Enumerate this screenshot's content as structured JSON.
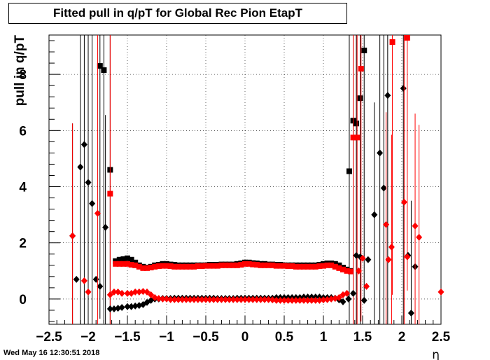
{
  "chart_data": {
    "type": "scatter",
    "title": "Fitted pull in q/pT for Global Rec Pion EtapT",
    "xlabel": "η",
    "ylabel": "pull in q/pT",
    "xlim": [
      -2.5,
      2.5
    ],
    "ylim": [
      -0.9,
      9.4
    ],
    "x_ticks": [
      -2.5,
      -2,
      -1.5,
      -1,
      -0.5,
      0,
      0.5,
      1,
      1.5,
      2,
      2.5
    ],
    "x_tick_labels": [
      "−2.5",
      "−2",
      "−1.5",
      "−1",
      "−0.5",
      "0",
      "0.5",
      "1",
      "1.5",
      "2",
      "2.5"
    ],
    "y_ticks": [
      0,
      2,
      4,
      6,
      8
    ],
    "y_tick_labels": [
      "0",
      "2",
      "4",
      "6",
      "8"
    ],
    "grid": true,
    "colors": {
      "black": "#000000",
      "red": "#ff0000"
    },
    "series": [
      {
        "marker": "square",
        "color": "#000000",
        "points": [
          [
            -1.85,
            8.3
          ],
          [
            -1.8,
            8.15
          ],
          [
            -1.72,
            4.6
          ],
          [
            -1.65,
            1.35
          ],
          [
            -1.6,
            1.4
          ],
          [
            -1.55,
            1.42
          ],
          [
            -1.5,
            1.45
          ],
          [
            -1.45,
            1.4
          ],
          [
            -1.4,
            1.3
          ],
          [
            -1.35,
            1.2
          ],
          [
            -1.3,
            1.15
          ],
          [
            -1.25,
            1.12
          ],
          [
            -1.2,
            1.15
          ],
          [
            -1.15,
            1.2
          ],
          [
            -1.1,
            1.22
          ],
          [
            -1.05,
            1.25
          ],
          [
            -1.0,
            1.25
          ],
          [
            -0.95,
            1.23
          ],
          [
            -0.9,
            1.22
          ],
          [
            -0.85,
            1.2
          ],
          [
            -0.8,
            1.2
          ],
          [
            -0.75,
            1.2
          ],
          [
            -0.7,
            1.2
          ],
          [
            -0.65,
            1.2
          ],
          [
            -0.6,
            1.2
          ],
          [
            -0.55,
            1.2
          ],
          [
            -0.5,
            1.2
          ],
          [
            -0.45,
            1.22
          ],
          [
            -0.4,
            1.22
          ],
          [
            -0.35,
            1.22
          ],
          [
            -0.3,
            1.23
          ],
          [
            -0.25,
            1.23
          ],
          [
            -0.2,
            1.23
          ],
          [
            -0.15,
            1.23
          ],
          [
            -0.1,
            1.25
          ],
          [
            -0.05,
            1.27
          ],
          [
            0.0,
            1.3
          ],
          [
            0.05,
            1.3
          ],
          [
            0.1,
            1.28
          ],
          [
            0.15,
            1.27
          ],
          [
            0.2,
            1.25
          ],
          [
            0.25,
            1.25
          ],
          [
            0.3,
            1.23
          ],
          [
            0.35,
            1.23
          ],
          [
            0.4,
            1.22
          ],
          [
            0.45,
            1.22
          ],
          [
            0.5,
            1.2
          ],
          [
            0.55,
            1.2
          ],
          [
            0.6,
            1.2
          ],
          [
            0.65,
            1.2
          ],
          [
            0.7,
            1.2
          ],
          [
            0.75,
            1.2
          ],
          [
            0.8,
            1.2
          ],
          [
            0.85,
            1.2
          ],
          [
            0.9,
            1.2
          ],
          [
            0.95,
            1.22
          ],
          [
            1.0,
            1.25
          ],
          [
            1.05,
            1.27
          ],
          [
            1.1,
            1.27
          ],
          [
            1.15,
            1.25
          ],
          [
            1.2,
            1.2
          ],
          [
            1.25,
            1.12
          ],
          [
            1.3,
            1.05
          ],
          [
            1.35,
            1.0
          ],
          [
            1.33,
            4.55
          ],
          [
            1.38,
            6.35
          ],
          [
            1.42,
            6.25
          ],
          [
            1.47,
            7.15
          ],
          [
            1.52,
            8.85
          ]
        ]
      },
      {
        "marker": "square",
        "color": "#ff0000",
        "points": [
          [
            -1.72,
            3.75
          ],
          [
            -1.65,
            1.25
          ],
          [
            -1.6,
            1.25
          ],
          [
            -1.55,
            1.25
          ],
          [
            -1.5,
            1.25
          ],
          [
            -1.45,
            1.22
          ],
          [
            -1.4,
            1.2
          ],
          [
            -1.35,
            1.15
          ],
          [
            -1.3,
            1.1
          ],
          [
            -1.25,
            1.1
          ],
          [
            -1.2,
            1.12
          ],
          [
            -1.15,
            1.15
          ],
          [
            -1.1,
            1.17
          ],
          [
            -1.05,
            1.18
          ],
          [
            -1.0,
            1.18
          ],
          [
            -0.95,
            1.17
          ],
          [
            -0.9,
            1.15
          ],
          [
            -0.85,
            1.15
          ],
          [
            -0.8,
            1.15
          ],
          [
            -0.75,
            1.15
          ],
          [
            -0.7,
            1.15
          ],
          [
            -0.65,
            1.15
          ],
          [
            -0.6,
            1.17
          ],
          [
            -0.55,
            1.17
          ],
          [
            -0.5,
            1.18
          ],
          [
            -0.45,
            1.18
          ],
          [
            -0.4,
            1.18
          ],
          [
            -0.35,
            1.18
          ],
          [
            -0.3,
            1.2
          ],
          [
            -0.25,
            1.2
          ],
          [
            -0.2,
            1.2
          ],
          [
            -0.15,
            1.2
          ],
          [
            -0.1,
            1.2
          ],
          [
            -0.05,
            1.22
          ],
          [
            0.0,
            1.25
          ],
          [
            0.05,
            1.25
          ],
          [
            0.1,
            1.23
          ],
          [
            0.15,
            1.22
          ],
          [
            0.2,
            1.2
          ],
          [
            0.25,
            1.2
          ],
          [
            0.3,
            1.2
          ],
          [
            0.35,
            1.2
          ],
          [
            0.4,
            1.18
          ],
          [
            0.45,
            1.18
          ],
          [
            0.5,
            1.18
          ],
          [
            0.55,
            1.17
          ],
          [
            0.6,
            1.17
          ],
          [
            0.65,
            1.15
          ],
          [
            0.7,
            1.15
          ],
          [
            0.75,
            1.15
          ],
          [
            0.8,
            1.15
          ],
          [
            0.85,
            1.15
          ],
          [
            0.9,
            1.15
          ],
          [
            0.95,
            1.17
          ],
          [
            1.0,
            1.18
          ],
          [
            1.05,
            1.2
          ],
          [
            1.1,
            1.2
          ],
          [
            1.15,
            1.15
          ],
          [
            1.2,
            1.1
          ],
          [
            1.25,
            1.05
          ],
          [
            1.3,
            1.0
          ],
          [
            1.35,
            0.98
          ],
          [
            1.38,
            5.75
          ],
          [
            1.43,
            5.75
          ],
          [
            1.48,
            8.2
          ],
          [
            1.88,
            9.15
          ],
          [
            2.07,
            9.3
          ]
        ]
      },
      {
        "marker": "diamond",
        "color": "#000000",
        "points": [
          [
            -2.2,
            2.25
          ],
          [
            -2.15,
            0.7
          ],
          [
            -2.1,
            4.7
          ],
          [
            -2.05,
            5.5
          ],
          [
            -2.0,
            4.15
          ],
          [
            -1.95,
            3.4
          ],
          [
            -1.9,
            0.7
          ],
          [
            -1.85,
            0.45
          ],
          [
            -1.78,
            2.55
          ],
          [
            -1.72,
            -0.35
          ],
          [
            -1.67,
            -0.35
          ],
          [
            -1.62,
            -0.33
          ],
          [
            -1.57,
            -0.3
          ],
          [
            -1.5,
            -0.27
          ],
          [
            -1.45,
            -0.27
          ],
          [
            -1.4,
            -0.25
          ],
          [
            -1.35,
            -0.23
          ],
          [
            -1.3,
            -0.2
          ],
          [
            -1.25,
            -0.12
          ],
          [
            -1.2,
            -0.05
          ],
          [
            -1.15,
            0.0
          ],
          [
            -1.1,
            0.0
          ],
          [
            -1.05,
            0.02
          ],
          [
            -1.0,
            0.02
          ],
          [
            -0.95,
            0.02
          ],
          [
            -0.9,
            0.03
          ],
          [
            -0.85,
            0.03
          ],
          [
            -0.8,
            0.03
          ],
          [
            -0.75,
            0.03
          ],
          [
            -0.7,
            0.03
          ],
          [
            -0.65,
            0.03
          ],
          [
            -0.6,
            0.03
          ],
          [
            -0.55,
            0.03
          ],
          [
            -0.5,
            0.03
          ],
          [
            -0.45,
            0.03
          ],
          [
            -0.4,
            0.03
          ],
          [
            -0.35,
            0.02
          ],
          [
            -0.3,
            0.02
          ],
          [
            -0.25,
            0.02
          ],
          [
            -0.2,
            0.02
          ],
          [
            -0.15,
            0.02
          ],
          [
            -0.1,
            0.03
          ],
          [
            -0.05,
            0.03
          ],
          [
            0.0,
            0.03
          ],
          [
            0.05,
            0.03
          ],
          [
            0.1,
            0.03
          ],
          [
            0.15,
            0.03
          ],
          [
            0.2,
            0.03
          ],
          [
            0.25,
            0.03
          ],
          [
            0.3,
            0.03
          ],
          [
            0.35,
            0.03
          ],
          [
            0.4,
            0.05
          ],
          [
            0.45,
            0.05
          ],
          [
            0.5,
            0.05
          ],
          [
            0.55,
            0.05
          ],
          [
            0.6,
            0.05
          ],
          [
            0.65,
            0.05
          ],
          [
            0.7,
            0.05
          ],
          [
            0.75,
            0.07
          ],
          [
            0.8,
            0.07
          ],
          [
            0.85,
            0.07
          ],
          [
            0.9,
            0.07
          ],
          [
            0.95,
            0.07
          ],
          [
            1.0,
            0.05
          ],
          [
            1.05,
            0.05
          ],
          [
            1.1,
            0.05
          ],
          [
            1.15,
            0.03
          ],
          [
            1.2,
            -0.03
          ],
          [
            1.25,
            -0.1
          ],
          [
            1.32,
            0.0
          ],
          [
            1.38,
            0.2
          ],
          [
            1.42,
            1.55
          ],
          [
            1.47,
            1.5
          ],
          [
            1.52,
            -0.05
          ],
          [
            1.57,
            1.4
          ],
          [
            1.65,
            3.0
          ],
          [
            1.72,
            5.2
          ],
          [
            1.77,
            3.95
          ],
          [
            1.82,
            7.25
          ],
          [
            2.02,
            7.5
          ],
          [
            2.08,
            1.55
          ],
          [
            2.12,
            -0.5
          ],
          [
            2.17,
            1.15
          ]
        ]
      },
      {
        "marker": "diamond",
        "color": "#ff0000",
        "points": [
          [
            -2.2,
            2.25
          ],
          [
            -2.05,
            0.65
          ],
          [
            -2.0,
            0.25
          ],
          [
            -1.88,
            3.05
          ],
          [
            -1.72,
            0.15
          ],
          [
            -1.67,
            0.25
          ],
          [
            -1.62,
            0.25
          ],
          [
            -1.57,
            0.2
          ],
          [
            -1.5,
            0.2
          ],
          [
            -1.45,
            0.2
          ],
          [
            -1.4,
            0.25
          ],
          [
            -1.35,
            0.25
          ],
          [
            -1.3,
            0.27
          ],
          [
            -1.25,
            0.25
          ],
          [
            -1.2,
            0.15
          ],
          [
            -1.15,
            0.05
          ],
          [
            -1.1,
            0.02
          ],
          [
            -1.05,
            0.0
          ],
          [
            -1.0,
            0.0
          ],
          [
            -0.95,
            -0.02
          ],
          [
            -0.9,
            -0.02
          ],
          [
            -0.85,
            -0.02
          ],
          [
            -0.8,
            -0.02
          ],
          [
            -0.75,
            -0.02
          ],
          [
            -0.7,
            -0.02
          ],
          [
            -0.65,
            -0.02
          ],
          [
            -0.6,
            -0.02
          ],
          [
            -0.55,
            -0.02
          ],
          [
            -0.5,
            -0.02
          ],
          [
            -0.45,
            -0.02
          ],
          [
            -0.4,
            -0.02
          ],
          [
            -0.35,
            -0.02
          ],
          [
            -0.3,
            -0.02
          ],
          [
            -0.25,
            -0.02
          ],
          [
            -0.2,
            -0.02
          ],
          [
            -0.15,
            -0.02
          ],
          [
            -0.1,
            -0.02
          ],
          [
            -0.05,
            -0.02
          ],
          [
            0.0,
            -0.02
          ],
          [
            0.05,
            -0.02
          ],
          [
            0.1,
            -0.02
          ],
          [
            0.15,
            -0.02
          ],
          [
            0.2,
            -0.02
          ],
          [
            0.25,
            -0.02
          ],
          [
            0.3,
            -0.02
          ],
          [
            0.35,
            -0.03
          ],
          [
            0.4,
            -0.05
          ],
          [
            0.45,
            -0.05
          ],
          [
            0.5,
            -0.05
          ],
          [
            0.55,
            -0.05
          ],
          [
            0.6,
            -0.05
          ],
          [
            0.65,
            -0.05
          ],
          [
            0.7,
            -0.05
          ],
          [
            0.75,
            -0.05
          ],
          [
            0.8,
            -0.05
          ],
          [
            0.85,
            -0.05
          ],
          [
            0.9,
            -0.05
          ],
          [
            0.95,
            -0.05
          ],
          [
            1.0,
            -0.03
          ],
          [
            1.05,
            -0.02
          ],
          [
            1.1,
            0.0
          ],
          [
            1.15,
            0.02
          ],
          [
            1.2,
            0.05
          ],
          [
            1.25,
            0.15
          ],
          [
            1.3,
            0.2
          ],
          [
            1.45,
            1.0
          ],
          [
            1.5,
            1.45
          ],
          [
            1.55,
            0.45
          ],
          [
            1.8,
            2.65
          ],
          [
            1.83,
            1.4
          ],
          [
            1.87,
            1.85
          ],
          [
            2.03,
            3.45
          ],
          [
            2.07,
            1.5
          ],
          [
            2.17,
            2.6
          ],
          [
            2.22,
            2.2
          ],
          [
            2.5,
            0.25
          ]
        ]
      }
    ]
  },
  "footer": {
    "timestamp": "Wed May 16 12:30:51 2018"
  }
}
